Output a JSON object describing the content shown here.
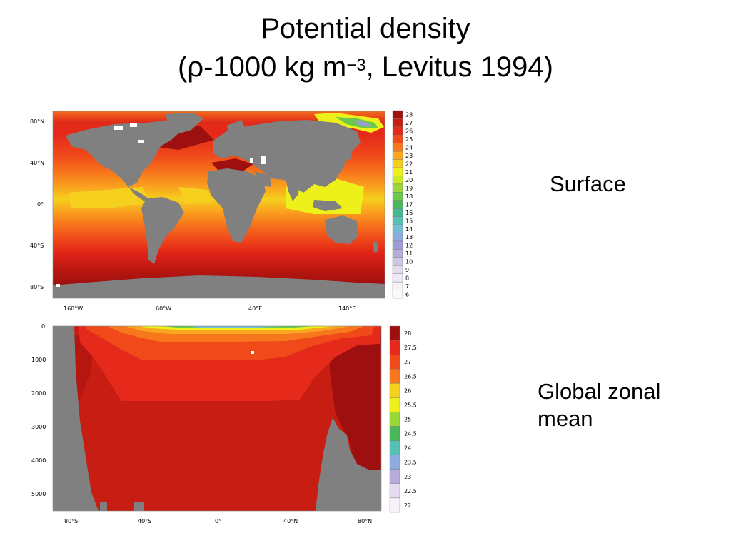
{
  "title": {
    "line1": "Potential density",
    "line2_pre": "(ρ-1000 kg m",
    "line2_sup": "−3",
    "line2_post": ", Levitus 1994)"
  },
  "panels": {
    "surface": {
      "label": "Surface",
      "y_ticks": [
        "80°N",
        "40°N",
        "0°",
        "40°S",
        "80°S"
      ],
      "x_ticks": [
        "160°W",
        "60°W",
        "40°E",
        "140°E"
      ],
      "colorbar": [
        "28",
        "27",
        "26",
        "25",
        "24",
        "23",
        "22",
        "21",
        "20",
        "19",
        "18",
        "17",
        "16",
        "15",
        "14",
        "13",
        "12",
        "11",
        "10",
        "9",
        "8",
        "7",
        "6"
      ]
    },
    "zonal": {
      "label": "Global zonal mean",
      "y_ticks": [
        "0",
        "1000",
        "2000",
        "3000",
        "4000",
        "5000"
      ],
      "x_ticks": [
        "80°S",
        "40°S",
        "0°",
        "40°N",
        "80°N"
      ],
      "colorbar": [
        "28",
        "27.5",
        "27",
        "26.5",
        "26",
        "25.5",
        "25",
        "24.5",
        "24",
        "23.5",
        "23",
        "22.5",
        "22"
      ]
    }
  },
  "colors": {
    "land": "#808080",
    "c28": "#9e0f0f",
    "c27": "#c81d12",
    "c26": "#e5291a",
    "c25": "#f04a1a",
    "c24": "#f7781c",
    "c23": "#faa61f",
    "c22": "#f5d01e",
    "c21": "#eef01a",
    "c20": "#c8ea1e",
    "c19": "#9ad83a",
    "c18": "#6cc84a",
    "c17": "#4ab85a",
    "c16": "#46b890",
    "c15": "#56c0b4",
    "c14": "#78bcd4",
    "c13": "#8eaade",
    "c12": "#a09ad8",
    "c11": "#b8acdc",
    "c10": "#d2c6e6",
    "c9": "#e6dcf0",
    "c8": "#f0eaf6",
    "c7": "#f6f2f8",
    "c6": "#fbfafb"
  }
}
